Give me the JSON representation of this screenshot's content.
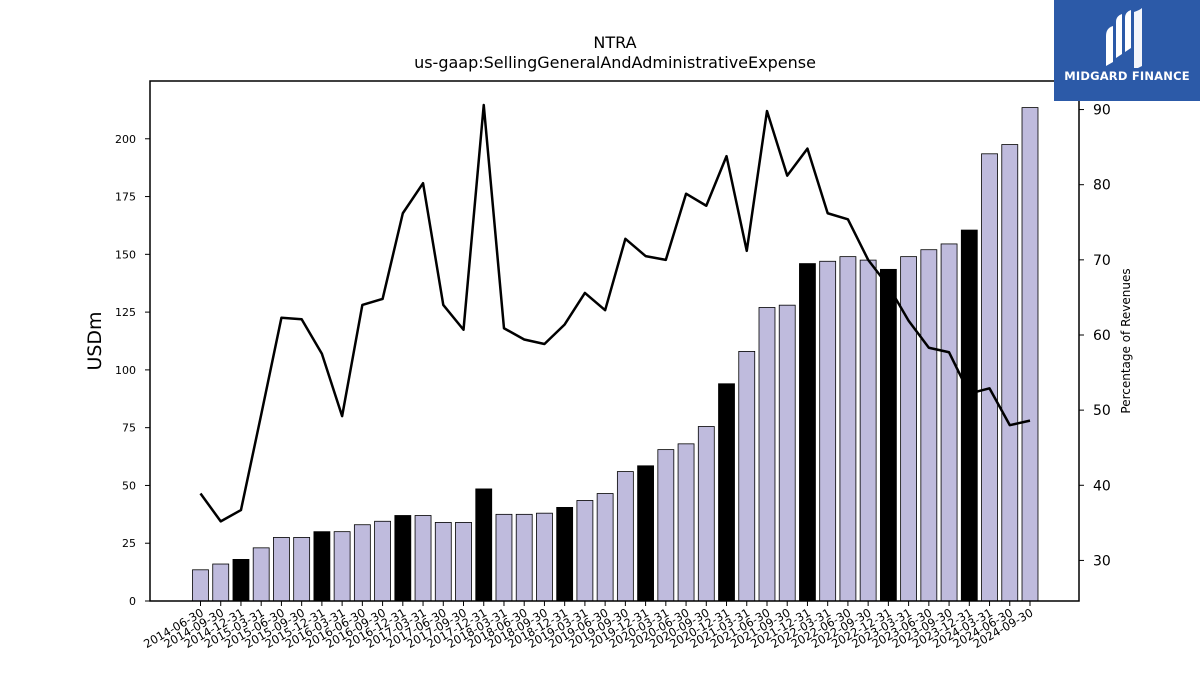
{
  "logo": {
    "text": "MIDGARD FINANCE",
    "icon": "midgard-logo-icon",
    "color": "#2c5aa8"
  },
  "chart_data": {
    "type": "bar",
    "title": "NTRA",
    "subtitle": "us-gaap:SellingGeneralAndAdministrativeExpense",
    "ylabel": "USDm",
    "y2label": "Percentage of Revenues",
    "ylim": [
      0,
      225
    ],
    "y2lim": [
      24.6,
      93.8
    ],
    "yticks": [
      0,
      25,
      50,
      75,
      100,
      125,
      150,
      175,
      200
    ],
    "y2ticks": [
      30,
      40,
      50,
      60,
      70,
      80,
      90
    ],
    "bar_colors": {
      "quarter": "#bfbbdd",
      "year_end": "#000000"
    },
    "line_color": "#000000",
    "categories": [
      "2014-06-30",
      "2014-09-30",
      "2014-12-31",
      "2015-03-31",
      "2015-06-30",
      "2015-09-30",
      "2015-12-31",
      "2016-03-31",
      "2016-06-30",
      "2016-09-30",
      "2016-12-31",
      "2017-03-31",
      "2017-06-30",
      "2017-09-30",
      "2017-12-31",
      "2018-03-31",
      "2018-06-30",
      "2018-09-30",
      "2018-12-31",
      "2019-03-31",
      "2019-06-30",
      "2019-09-30",
      "2019-12-31",
      "2020-03-31",
      "2020-06-30",
      "2020-09-30",
      "2020-12-31",
      "2021-03-31",
      "2021-06-30",
      "2021-09-30",
      "2021-12-31",
      "2022-03-31",
      "2022-06-30",
      "2022-09-30",
      "2022-12-31",
      "2023-03-31",
      "2023-06-30",
      "2023-09-30",
      "2023-12-31",
      "2024-03-31",
      "2024-06-30",
      "2024-09-30"
    ],
    "series": [
      {
        "name": "USDm",
        "type": "bar",
        "values": [
          13.5,
          16,
          18,
          23,
          27.5,
          27.5,
          30,
          30,
          33,
          34.5,
          37,
          37,
          34,
          34,
          48.5,
          37.5,
          37.5,
          38,
          40.5,
          43.5,
          46.5,
          56,
          58.5,
          65.5,
          68,
          75.5,
          94,
          108,
          127,
          128,
          146,
          147,
          149,
          147.5,
          143.5,
          149,
          152,
          154.5,
          160.5,
          193.5,
          197.5,
          213.5
        ],
        "year_end": [
          false,
          false,
          true,
          false,
          false,
          false,
          true,
          false,
          false,
          false,
          true,
          false,
          false,
          false,
          true,
          false,
          false,
          false,
          true,
          false,
          false,
          false,
          true,
          false,
          false,
          false,
          true,
          false,
          false,
          false,
          true,
          false,
          false,
          false,
          true,
          false,
          false,
          false,
          true,
          false,
          false,
          false
        ]
      },
      {
        "name": "Percentage of Revenues",
        "type": "line",
        "axis": "right",
        "values": [
          38.9,
          35.2,
          36.7,
          49.4,
          62.3,
          62.1,
          57.5,
          49.2,
          64,
          64.8,
          76.2,
          80.2,
          64,
          60.7,
          90.6,
          60.9,
          59.4,
          58.8,
          61.4,
          65.6,
          63.3,
          72.8,
          70.5,
          70,
          78.8,
          77.2,
          83.8,
          71.2,
          89.8,
          81.2,
          84.8,
          76.2,
          75.4,
          70,
          66.5,
          61.9,
          58.3,
          57.7,
          52.2,
          52.9,
          48,
          48.6
        ]
      }
    ],
    "grid": false
  }
}
